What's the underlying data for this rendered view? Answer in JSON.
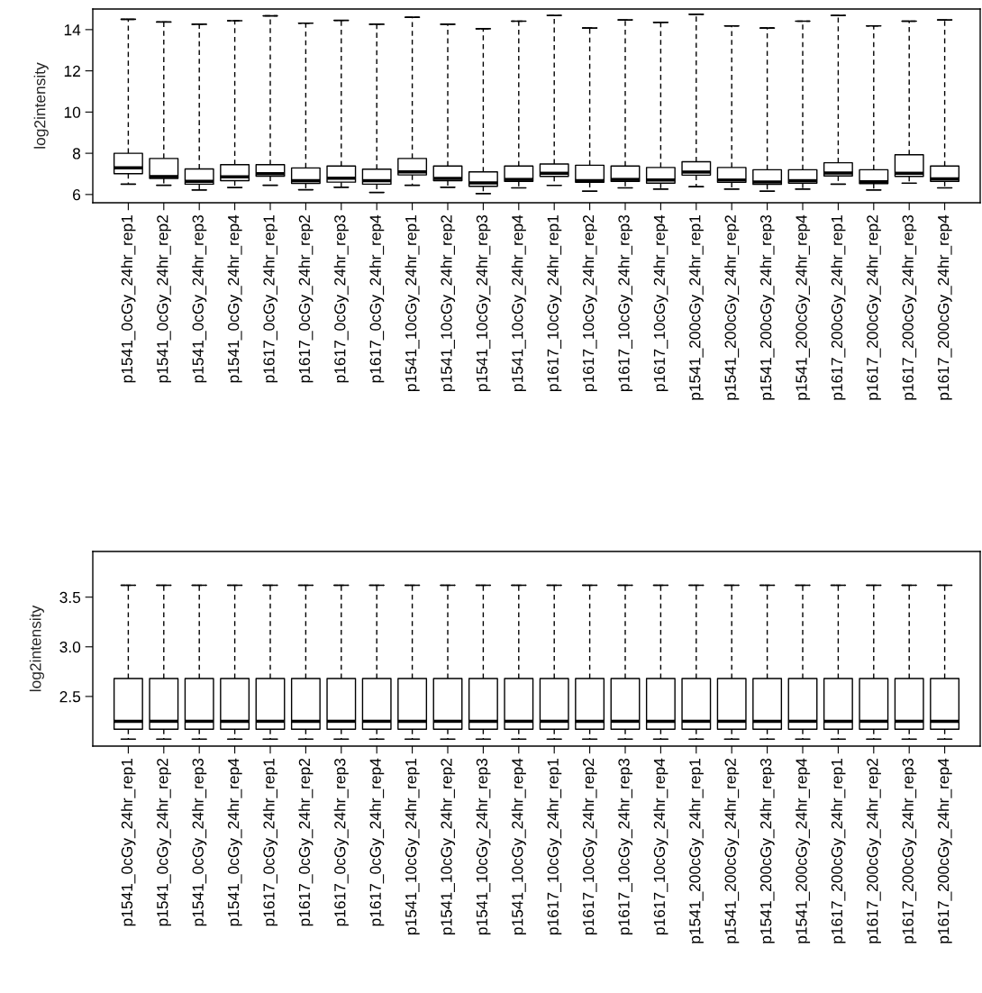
{
  "chart_data": [
    {
      "type": "box",
      "ylabel": "log2intensity",
      "ylim": [
        5.6,
        15.0
      ],
      "yticks": [
        6,
        8,
        10,
        12,
        14
      ],
      "categories": [
        "p1541_0cGy_24hr_rep1",
        "p1541_0cGy_24hr_rep2",
        "p1541_0cGy_24hr_rep3",
        "p1541_0cGy_24hr_rep4",
        "p1617_0cGy_24hr_rep1",
        "p1617_0cGy_24hr_rep2",
        "p1617_0cGy_24hr_rep3",
        "p1617_0cGy_24hr_rep4",
        "p1541_10cGy_24hr_rep1",
        "p1541_10cGy_24hr_rep2",
        "p1541_10cGy_24hr_rep3",
        "p1541_10cGy_24hr_rep4",
        "p1617_10cGy_24hr_rep1",
        "p1617_10cGy_24hr_rep2",
        "p1617_10cGy_24hr_rep3",
        "p1617_10cGy_24hr_rep4",
        "p1541_200cGy_24hr_rep1",
        "p1541_200cGy_24hr_rep2",
        "p1541_200cGy_24hr_rep3",
        "p1541_200cGy_24hr_rep4",
        "p1617_200cGy_24hr_rep1",
        "p1617_200cGy_24hr_rep2",
        "p1617_200cGy_24hr_rep3",
        "p1617_200cGy_24hr_rep4"
      ],
      "boxes": [
        {
          "low": 6.5,
          "q1": 7.01,
          "median": 7.29,
          "q3": 8.0,
          "high": 14.5
        },
        {
          "low": 6.45,
          "q1": 6.78,
          "median": 6.87,
          "q3": 7.75,
          "high": 14.37
        },
        {
          "low": 6.22,
          "q1": 6.5,
          "median": 6.64,
          "q3": 7.24,
          "high": 14.26
        },
        {
          "low": 6.34,
          "q1": 6.67,
          "median": 6.86,
          "q3": 7.45,
          "high": 14.43
        },
        {
          "low": 6.45,
          "q1": 6.89,
          "median": 7.01,
          "q3": 7.45,
          "high": 14.67
        },
        {
          "low": 6.23,
          "q1": 6.54,
          "median": 6.67,
          "q3": 7.29,
          "high": 14.31
        },
        {
          "low": 6.35,
          "q1": 6.6,
          "median": 6.79,
          "q3": 7.38,
          "high": 14.45
        },
        {
          "low": 6.1,
          "q1": 6.5,
          "median": 6.67,
          "q3": 7.23,
          "high": 14.26
        },
        {
          "low": 6.45,
          "q1": 6.95,
          "median": 7.1,
          "q3": 7.75,
          "high": 14.6
        },
        {
          "low": 6.35,
          "q1": 6.67,
          "median": 6.78,
          "q3": 7.38,
          "high": 14.26
        },
        {
          "low": 6.04,
          "q1": 6.4,
          "median": 6.56,
          "q3": 7.1,
          "high": 14.04
        },
        {
          "low": 6.32,
          "q1": 6.64,
          "median": 6.73,
          "q3": 7.38,
          "high": 14.41
        },
        {
          "low": 6.44,
          "q1": 6.88,
          "median": 7.03,
          "q3": 7.48,
          "high": 14.69
        },
        {
          "low": 6.16,
          "q1": 6.59,
          "median": 6.67,
          "q3": 7.42,
          "high": 14.08
        },
        {
          "low": 6.32,
          "q1": 6.64,
          "median": 6.73,
          "q3": 7.38,
          "high": 14.47
        },
        {
          "low": 6.26,
          "q1": 6.55,
          "median": 6.7,
          "q3": 7.31,
          "high": 14.35
        },
        {
          "low": 6.38,
          "q1": 6.94,
          "median": 7.09,
          "q3": 7.59,
          "high": 14.74
        },
        {
          "low": 6.26,
          "q1": 6.59,
          "median": 6.7,
          "q3": 7.31,
          "high": 14.18
        },
        {
          "low": 6.16,
          "q1": 6.49,
          "median": 6.61,
          "q3": 7.2,
          "high": 14.08
        },
        {
          "low": 6.26,
          "q1": 6.55,
          "median": 6.67,
          "q3": 7.2,
          "high": 14.41
        },
        {
          "low": 6.5,
          "q1": 6.9,
          "median": 7.04,
          "q3": 7.54,
          "high": 14.69
        },
        {
          "low": 6.22,
          "q1": 6.53,
          "median": 6.62,
          "q3": 7.2,
          "high": 14.18
        },
        {
          "low": 6.55,
          "q1": 6.88,
          "median": 7.03,
          "q3": 7.93,
          "high": 14.41
        },
        {
          "low": 6.32,
          "q1": 6.64,
          "median": 6.76,
          "q3": 7.38,
          "high": 14.47
        }
      ]
    },
    {
      "type": "box",
      "ylabel": "log2intensity",
      "ylim": [
        2.0,
        3.96
      ],
      "yticks": [
        2.5,
        {
          "value": 3,
          "label": "3.0"
        },
        3.5
      ],
      "categories": [
        "p1541_0cGy_24hr_rep1",
        "p1541_0cGy_24hr_rep2",
        "p1541_0cGy_24hr_rep3",
        "p1541_0cGy_24hr_rep4",
        "p1617_0cGy_24hr_rep1",
        "p1617_0cGy_24hr_rep2",
        "p1617_0cGy_24hr_rep3",
        "p1617_0cGy_24hr_rep4",
        "p1541_10cGy_24hr_rep1",
        "p1541_10cGy_24hr_rep2",
        "p1541_10cGy_24hr_rep3",
        "p1541_10cGy_24hr_rep4",
        "p1617_10cGy_24hr_rep1",
        "p1617_10cGy_24hr_rep2",
        "p1617_10cGy_24hr_rep3",
        "p1617_10cGy_24hr_rep4",
        "p1541_200cGy_24hr_rep1",
        "p1541_200cGy_24hr_rep2",
        "p1541_200cGy_24hr_rep3",
        "p1541_200cGy_24hr_rep4",
        "p1617_200cGy_24hr_rep1",
        "p1617_200cGy_24hr_rep2",
        "p1617_200cGy_24hr_rep3",
        "p1617_200cGy_24hr_rep4"
      ],
      "boxes": [
        {
          "low": 2.07,
          "q1": 2.17,
          "median": 2.25,
          "q3": 2.68,
          "high": 3.62
        },
        {
          "low": 2.07,
          "q1": 2.17,
          "median": 2.25,
          "q3": 2.68,
          "high": 3.62
        },
        {
          "low": 2.07,
          "q1": 2.17,
          "median": 2.25,
          "q3": 2.68,
          "high": 3.62
        },
        {
          "low": 2.07,
          "q1": 2.17,
          "median": 2.25,
          "q3": 2.68,
          "high": 3.62
        },
        {
          "low": 2.07,
          "q1": 2.17,
          "median": 2.25,
          "q3": 2.68,
          "high": 3.62
        },
        {
          "low": 2.07,
          "q1": 2.17,
          "median": 2.25,
          "q3": 2.68,
          "high": 3.62
        },
        {
          "low": 2.07,
          "q1": 2.17,
          "median": 2.25,
          "q3": 2.68,
          "high": 3.62
        },
        {
          "low": 2.07,
          "q1": 2.17,
          "median": 2.25,
          "q3": 2.68,
          "high": 3.62
        },
        {
          "low": 2.07,
          "q1": 2.17,
          "median": 2.25,
          "q3": 2.68,
          "high": 3.62
        },
        {
          "low": 2.07,
          "q1": 2.17,
          "median": 2.25,
          "q3": 2.68,
          "high": 3.62
        },
        {
          "low": 2.07,
          "q1": 2.17,
          "median": 2.25,
          "q3": 2.68,
          "high": 3.62
        },
        {
          "low": 2.07,
          "q1": 2.17,
          "median": 2.25,
          "q3": 2.68,
          "high": 3.62
        },
        {
          "low": 2.07,
          "q1": 2.17,
          "median": 2.25,
          "q3": 2.68,
          "high": 3.62
        },
        {
          "low": 2.07,
          "q1": 2.17,
          "median": 2.25,
          "q3": 2.68,
          "high": 3.62
        },
        {
          "low": 2.07,
          "q1": 2.17,
          "median": 2.25,
          "q3": 2.68,
          "high": 3.62
        },
        {
          "low": 2.07,
          "q1": 2.17,
          "median": 2.25,
          "q3": 2.68,
          "high": 3.62
        },
        {
          "low": 2.07,
          "q1": 2.17,
          "median": 2.25,
          "q3": 2.68,
          "high": 3.62
        },
        {
          "low": 2.07,
          "q1": 2.17,
          "median": 2.25,
          "q3": 2.68,
          "high": 3.62
        },
        {
          "low": 2.07,
          "q1": 2.17,
          "median": 2.25,
          "q3": 2.68,
          "high": 3.62
        },
        {
          "low": 2.07,
          "q1": 2.17,
          "median": 2.25,
          "q3": 2.68,
          "high": 3.62
        },
        {
          "low": 2.07,
          "q1": 2.17,
          "median": 2.25,
          "q3": 2.68,
          "high": 3.62
        },
        {
          "low": 2.07,
          "q1": 2.17,
          "median": 2.25,
          "q3": 2.68,
          "high": 3.62
        },
        {
          "low": 2.07,
          "q1": 2.17,
          "median": 2.25,
          "q3": 2.68,
          "high": 3.62
        },
        {
          "low": 2.07,
          "q1": 2.17,
          "median": 2.25,
          "q3": 2.68,
          "high": 3.62
        }
      ]
    }
  ]
}
